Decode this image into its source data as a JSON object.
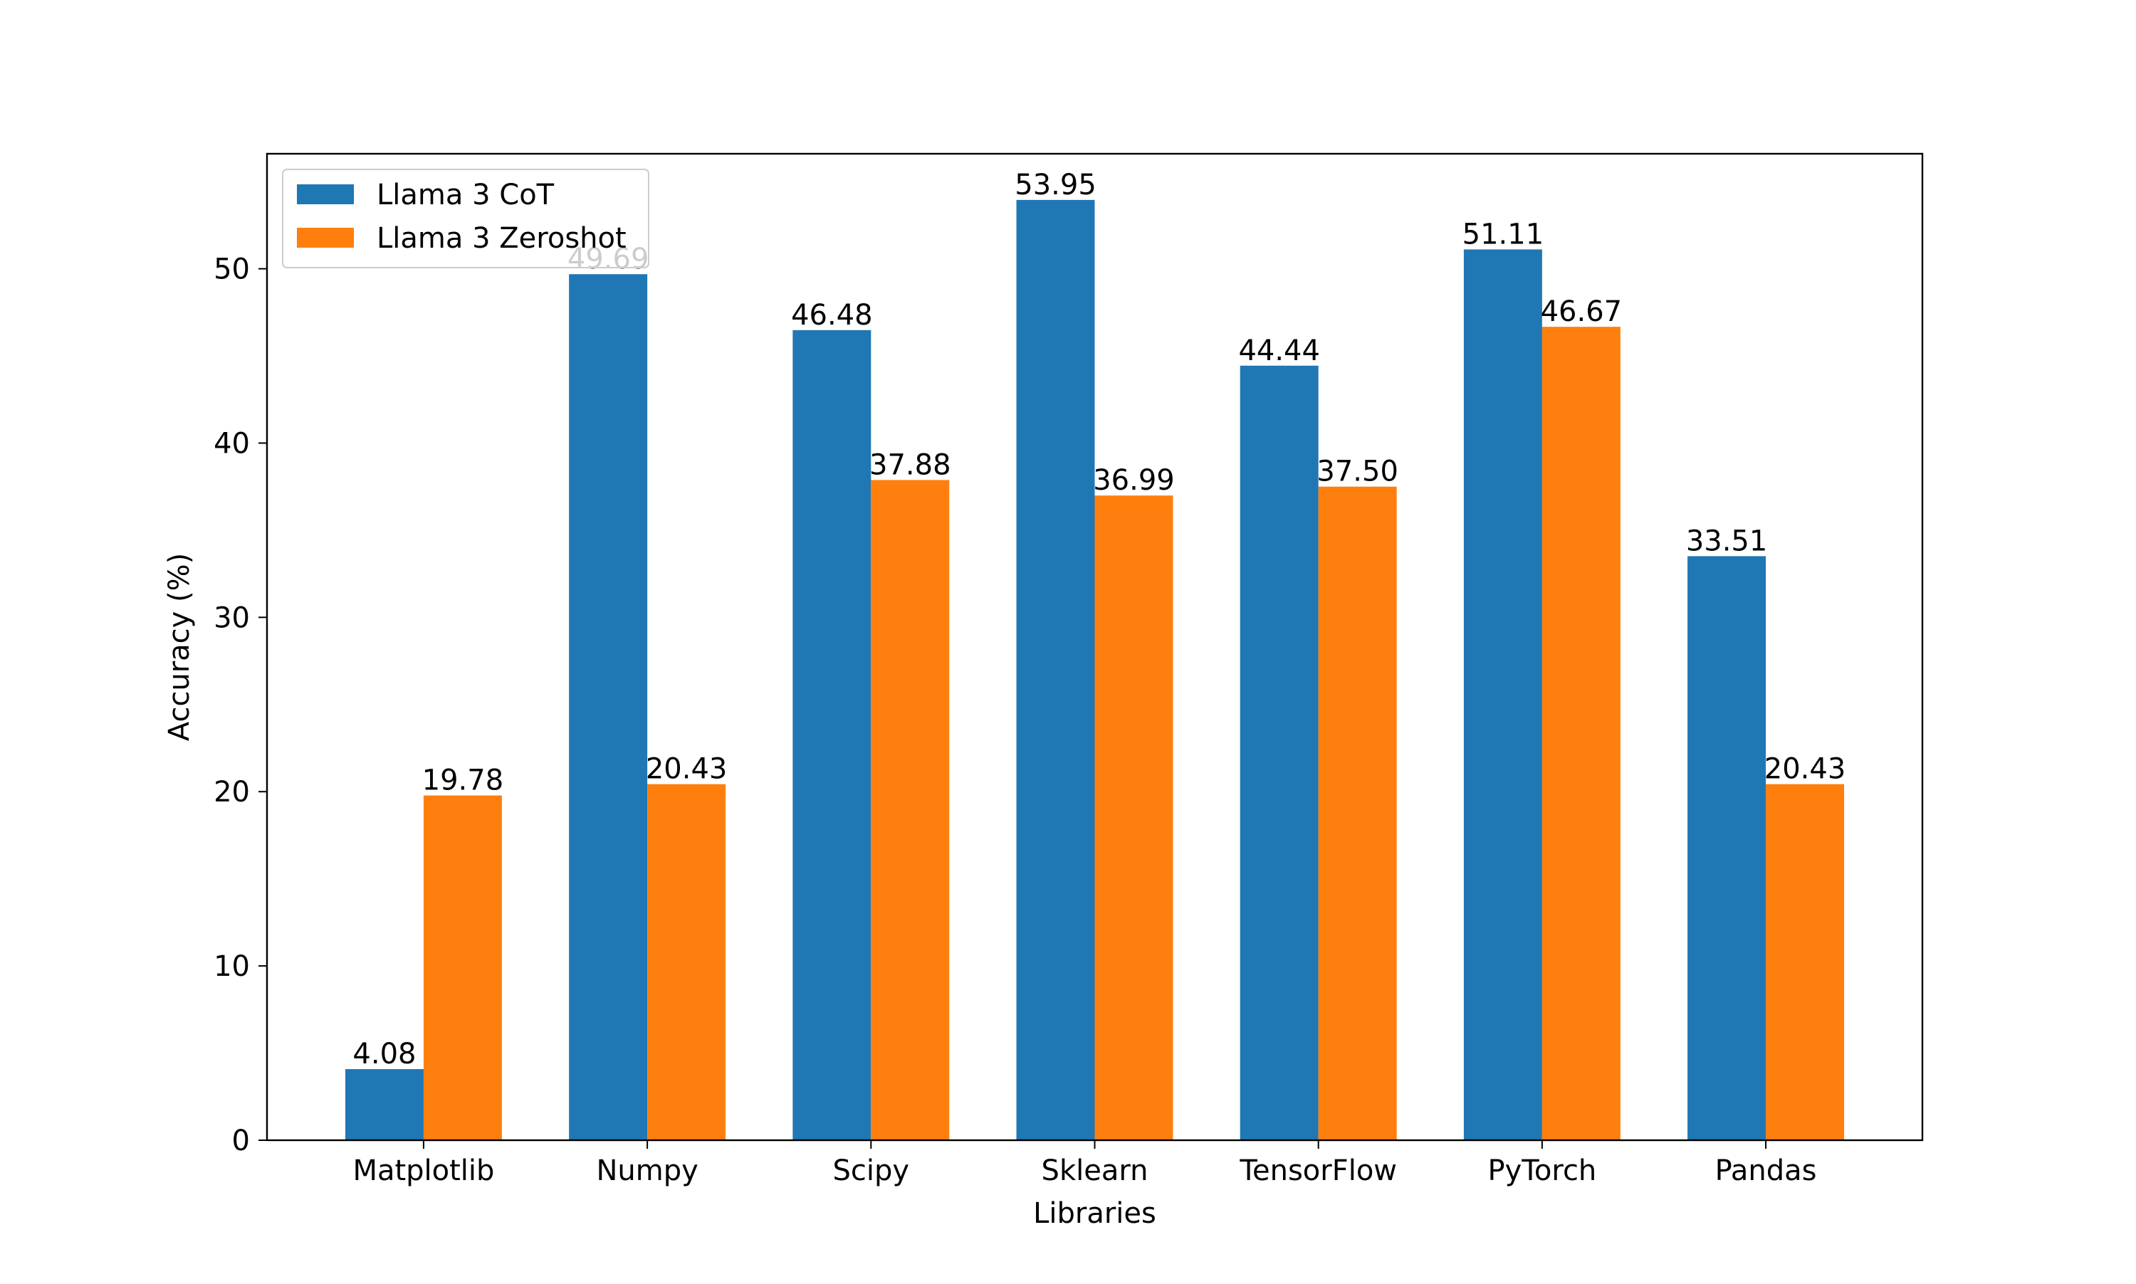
{
  "chart_data": {
    "type": "bar",
    "title": "",
    "xlabel": "Libraries",
    "ylabel": "Accuracy (%)",
    "ylim": [
      0,
      56.6
    ],
    "yticks": [
      0,
      10,
      20,
      30,
      40,
      50
    ],
    "grid": false,
    "legend_position": "top-left",
    "categories": [
      "Matplotlib",
      "Numpy",
      "Scipy",
      "Sklearn",
      "TensorFlow",
      "PyTorch",
      "Pandas"
    ],
    "series": [
      {
        "name": "Llama 3 CoT",
        "color": "#1f77b4",
        "values": [
          4.08,
          49.69,
          46.48,
          53.95,
          44.44,
          51.11,
          33.51
        ],
        "labels": [
          "4.08",
          "49.69",
          "46.48",
          "53.95",
          "44.44",
          "51.11",
          "33.51"
        ]
      },
      {
        "name": "Llama 3 Zeroshot",
        "color": "#ff7f0e",
        "values": [
          19.78,
          20.43,
          37.88,
          36.99,
          37.5,
          46.67,
          20.43
        ],
        "labels": [
          "19.78",
          "20.43",
          "37.88",
          "36.99",
          "37.50",
          "46.67",
          "20.43"
        ]
      }
    ]
  }
}
